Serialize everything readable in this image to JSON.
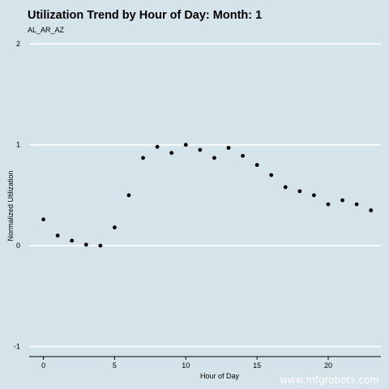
{
  "chart_data": {
    "type": "scatter",
    "title": "Utilization Trend by Hour of Day: Month: 1",
    "subtitle": "AL_AR_AZ",
    "xlabel": "Hour of Day",
    "ylabel": "Normalized Utilization",
    "xlim": [
      -1,
      23.7
    ],
    "ylim": [
      -1.1,
      2.05
    ],
    "xticks": [
      0,
      5,
      10,
      15,
      20
    ],
    "yticks": [
      -1,
      0,
      1,
      2
    ],
    "grid": "horizontal",
    "point_color": "#000000",
    "background": "#d5e4eb",
    "gridline_color": "#ffffff",
    "x": [
      0,
      1,
      2,
      3,
      4,
      5,
      6,
      7,
      8,
      9,
      10,
      11,
      12,
      13,
      14,
      15,
      16,
      17,
      18,
      19,
      20,
      21,
      22,
      23
    ],
    "y": [
      0.26,
      0.1,
      0.05,
      0.01,
      0.0,
      0.18,
      0.5,
      0.87,
      0.98,
      0.92,
      1.0,
      0.95,
      0.87,
      0.97,
      0.89,
      0.8,
      0.7,
      0.58,
      0.54,
      0.5,
      0.41,
      0.45,
      0.41,
      0.35
    ]
  },
  "watermark": "www.mfgrobots.com"
}
